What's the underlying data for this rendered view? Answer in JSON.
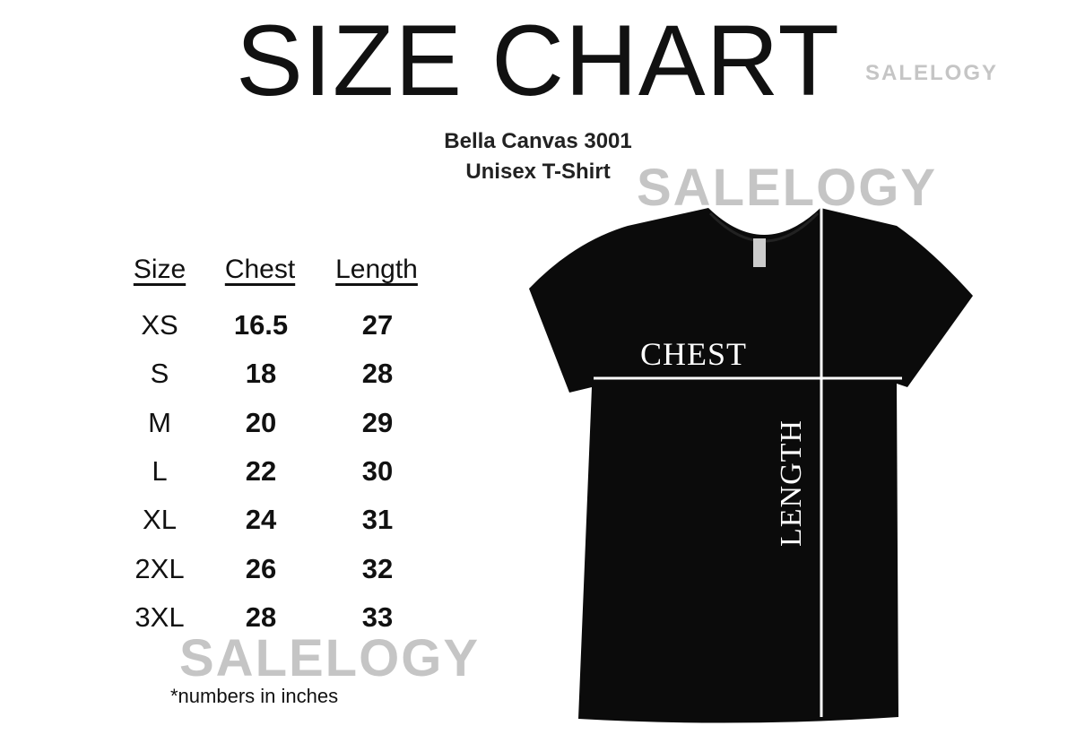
{
  "title": "SIZE CHART",
  "product": {
    "name": "Bella Canvas 3001",
    "type": "Unisex T-Shirt"
  },
  "table": {
    "headers": [
      "Size",
      "Chest",
      "Length"
    ],
    "rows": [
      [
        "XS",
        "16.5",
        "27"
      ],
      [
        "S",
        "18",
        "28"
      ],
      [
        "M",
        "20",
        "29"
      ],
      [
        "L",
        "22",
        "30"
      ],
      [
        "XL",
        "24",
        "31"
      ],
      [
        "2XL",
        "26",
        "32"
      ],
      [
        "3XL",
        "28",
        "33"
      ]
    ]
  },
  "note": "*numbers in inches",
  "shirt": {
    "chest_label": "CHEST",
    "length_label": "LENGTH",
    "color": "#0b0b0b"
  },
  "watermark": "SALELOGY"
}
